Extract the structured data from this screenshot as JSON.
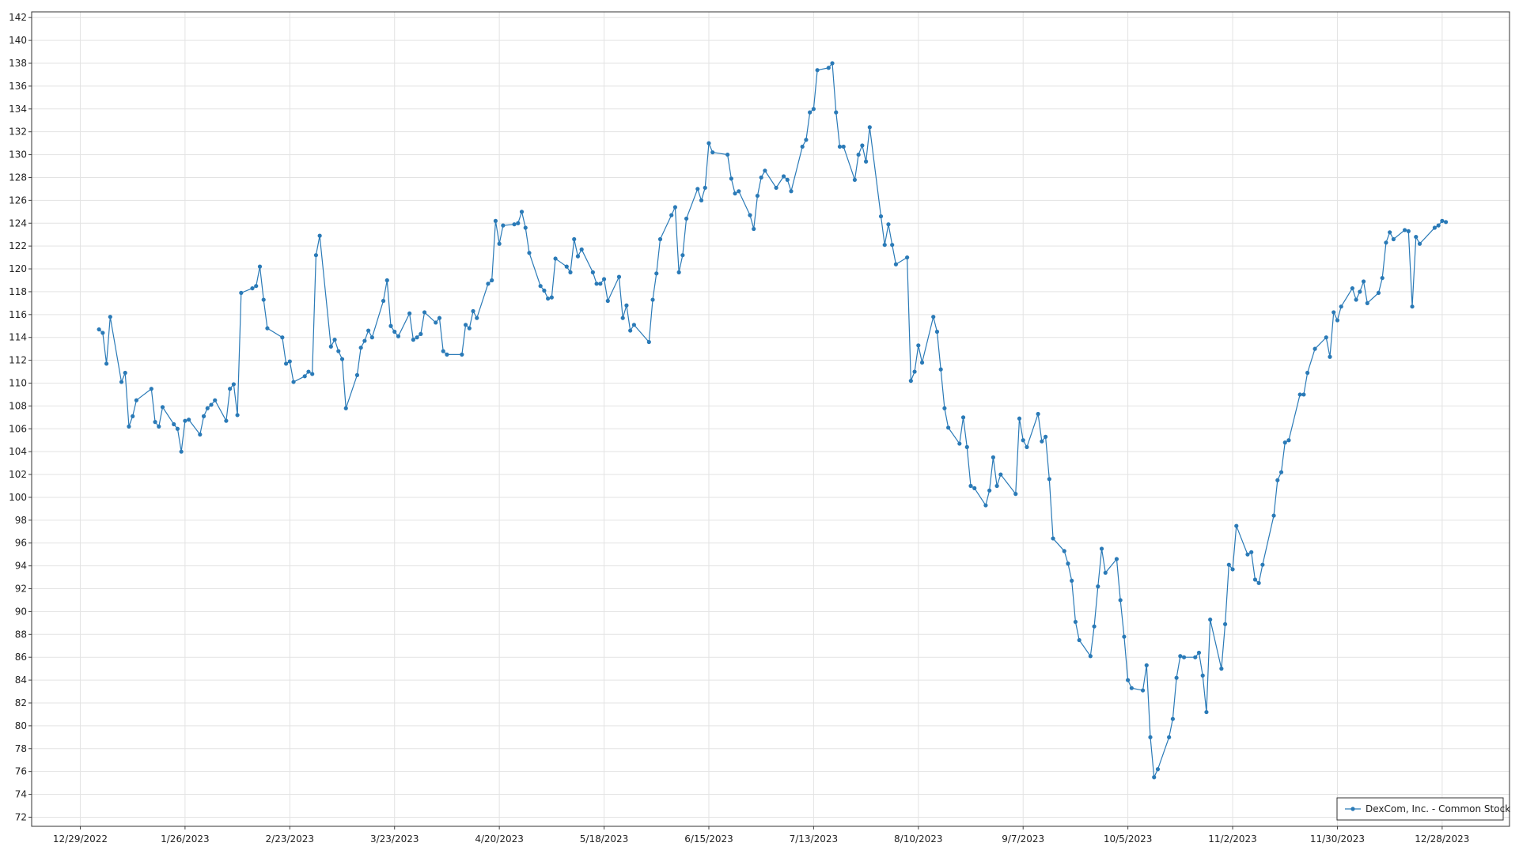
{
  "chart_data": {
    "type": "line",
    "x": [
      "1/3/2023",
      "1/4/2023",
      "1/5/2023",
      "1/6/2023",
      "1/9/2023",
      "1/10/2023",
      "1/11/2023",
      "1/12/2023",
      "1/13/2023",
      "1/17/2023",
      "1/18/2023",
      "1/19/2023",
      "1/20/2023",
      "1/23/2023",
      "1/24/2023",
      "1/25/2023",
      "1/26/2023",
      "1/27/2023",
      "1/30/2023",
      "1/31/2023",
      "2/1/2023",
      "2/2/2023",
      "2/3/2023",
      "2/6/2023",
      "2/7/2023",
      "2/8/2023",
      "2/9/2023",
      "2/10/2023",
      "2/13/2023",
      "2/14/2023",
      "2/15/2023",
      "2/16/2023",
      "2/17/2023",
      "2/21/2023",
      "2/22/2023",
      "2/23/2023",
      "2/24/2023",
      "2/27/2023",
      "2/28/2023",
      "3/1/2023",
      "3/2/2023",
      "3/3/2023",
      "3/6/2023",
      "3/7/2023",
      "3/8/2023",
      "3/9/2023",
      "3/10/2023",
      "3/13/2023",
      "3/14/2023",
      "3/15/2023",
      "3/16/2023",
      "3/17/2023",
      "3/20/2023",
      "3/21/2023",
      "3/22/2023",
      "3/23/2023",
      "3/24/2023",
      "3/27/2023",
      "3/28/2023",
      "3/29/2023",
      "3/30/2023",
      "3/31/2023",
      "4/3/2023",
      "4/4/2023",
      "4/5/2023",
      "4/6/2023",
      "4/10/2023",
      "4/11/2023",
      "4/12/2023",
      "4/13/2023",
      "4/14/2023",
      "4/17/2023",
      "4/18/2023",
      "4/19/2023",
      "4/20/2023",
      "4/21/2023",
      "4/24/2023",
      "4/25/2023",
      "4/26/2023",
      "4/27/2023",
      "4/28/2023",
      "5/1/2023",
      "5/2/2023",
      "5/3/2023",
      "5/4/2023",
      "5/5/2023",
      "5/8/2023",
      "5/9/2023",
      "5/10/2023",
      "5/11/2023",
      "5/12/2023",
      "5/15/2023",
      "5/16/2023",
      "5/17/2023",
      "5/18/2023",
      "5/19/2023",
      "5/22/2023",
      "5/23/2023",
      "5/24/2023",
      "5/25/2023",
      "5/26/2023",
      "5/30/2023",
      "5/31/2023",
      "6/1/2023",
      "6/2/2023",
      "6/5/2023",
      "6/6/2023",
      "6/7/2023",
      "6/8/2023",
      "6/9/2023",
      "6/12/2023",
      "6/13/2023",
      "6/14/2023",
      "6/15/2023",
      "6/16/2023",
      "6/20/2023",
      "6/21/2023",
      "6/22/2023",
      "6/23/2023",
      "6/26/2023",
      "6/27/2023",
      "6/28/2023",
      "6/29/2023",
      "6/30/2023",
      "7/3/2023",
      "7/5/2023",
      "7/6/2023",
      "7/7/2023",
      "7/10/2023",
      "7/11/2023",
      "7/12/2023",
      "7/13/2023",
      "7/14/2023",
      "7/17/2023",
      "7/18/2023",
      "7/19/2023",
      "7/20/2023",
      "7/21/2023",
      "7/24/2023",
      "7/25/2023",
      "7/26/2023",
      "7/27/2023",
      "7/28/2023",
      "7/31/2023",
      "8/1/2023",
      "8/2/2023",
      "8/3/2023",
      "8/4/2023",
      "8/7/2023",
      "8/8/2023",
      "8/9/2023",
      "8/10/2023",
      "8/11/2023",
      "8/14/2023",
      "8/15/2023",
      "8/16/2023",
      "8/17/2023",
      "8/18/2023",
      "8/21/2023",
      "8/22/2023",
      "8/23/2023",
      "8/24/2023",
      "8/25/2023",
      "8/28/2023",
      "8/29/2023",
      "8/30/2023",
      "8/31/2023",
      "9/1/2023",
      "9/5/2023",
      "9/6/2023",
      "9/7/2023",
      "9/8/2023",
      "9/11/2023",
      "9/12/2023",
      "9/13/2023",
      "9/14/2023",
      "9/15/2023",
      "9/18/2023",
      "9/19/2023",
      "9/20/2023",
      "9/21/2023",
      "9/22/2023",
      "9/25/2023",
      "9/26/2023",
      "9/27/2023",
      "9/28/2023",
      "9/29/2023",
      "10/2/2023",
      "10/3/2023",
      "10/4/2023",
      "10/5/2023",
      "10/6/2023",
      "10/9/2023",
      "10/10/2023",
      "10/11/2023",
      "10/12/2023",
      "10/13/2023",
      "10/16/2023",
      "10/17/2023",
      "10/18/2023",
      "10/19/2023",
      "10/20/2023",
      "10/23/2023",
      "10/24/2023",
      "10/25/2023",
      "10/26/2023",
      "10/27/2023",
      "10/30/2023",
      "10/31/2023",
      "11/1/2023",
      "11/2/2023",
      "11/3/2023",
      "11/6/2023",
      "11/7/2023",
      "11/8/2023",
      "11/9/2023",
      "11/10/2023",
      "11/13/2023",
      "11/14/2023",
      "11/15/2023",
      "11/16/2023",
      "11/17/2023",
      "11/20/2023",
      "11/21/2023",
      "11/22/2023",
      "11/24/2023",
      "11/27/2023",
      "11/28/2023",
      "11/29/2023",
      "11/30/2023",
      "12/1/2023",
      "12/4/2023",
      "12/5/2023",
      "12/6/2023",
      "12/7/2023",
      "12/8/2023",
      "12/11/2023",
      "12/12/2023",
      "12/13/2023",
      "12/14/2023",
      "12/15/2023",
      "12/18/2023",
      "12/19/2023",
      "12/20/2023",
      "12/21/2023",
      "12/22/2023",
      "12/26/2023",
      "12/27/2023",
      "12/28/2023",
      "12/29/2023"
    ],
    "series": [
      {
        "name": "DexCom, Inc. - Common Stock",
        "color": "#2a7ab7",
        "values": [
          114.7,
          114.4,
          111.7,
          115.8,
          110.1,
          110.9,
          106.2,
          107.1,
          108.5,
          109.5,
          106.6,
          106.2,
          107.9,
          106.4,
          106.0,
          104.0,
          106.7,
          106.8,
          105.5,
          107.1,
          107.8,
          108.1,
          108.5,
          106.7,
          109.5,
          109.9,
          107.2,
          117.9,
          118.3,
          118.5,
          120.2,
          117.3,
          114.8,
          114.0,
          111.7,
          111.9,
          110.1,
          110.6,
          111.0,
          110.8,
          121.2,
          122.9,
          113.2,
          113.8,
          112.8,
          112.1,
          107.8,
          110.7,
          113.1,
          113.7,
          114.6,
          114.0,
          117.2,
          119.0,
          115.0,
          114.5,
          114.1,
          116.1,
          113.8,
          114.0,
          114.3,
          116.2,
          115.3,
          115.7,
          112.8,
          112.5,
          112.5,
          115.1,
          114.8,
          116.3,
          115.7,
          118.7,
          119.0,
          124.2,
          122.2,
          123.8,
          123.9,
          124.0,
          125.0,
          123.6,
          121.4,
          118.5,
          118.1,
          117.4,
          117.5,
          120.9,
          120.2,
          119.7,
          122.6,
          121.1,
          121.7,
          119.7,
          118.7,
          118.7,
          119.1,
          117.2,
          119.3,
          115.7,
          116.8,
          114.6,
          115.1,
          113.6,
          117.3,
          119.6,
          122.6,
          124.7,
          125.4,
          119.7,
          121.2,
          124.4,
          127.0,
          126.0,
          127.1,
          131.0,
          130.2,
          130.0,
          127.9,
          126.6,
          126.8,
          124.7,
          123.5,
          126.4,
          128.0,
          128.6,
          127.1,
          128.1,
          127.8,
          126.8,
          130.7,
          131.3,
          133.7,
          134.0,
          137.4,
          137.6,
          138.0,
          133.7,
          130.7,
          130.7,
          127.8,
          130.0,
          130.8,
          129.4,
          132.4,
          124.6,
          122.1,
          123.9,
          122.1,
          120.4,
          121.0,
          110.2,
          111.0,
          113.3,
          111.8,
          115.8,
          114.5,
          111.2,
          107.8,
          106.1,
          104.7,
          107.0,
          104.4,
          101.0,
          100.8,
          99.3,
          100.6,
          103.5,
          101.0,
          102.0,
          100.3,
          106.9,
          105.0,
          104.4,
          107.3,
          104.9,
          105.3,
          101.6,
          96.4,
          95.3,
          94.2,
          92.7,
          89.1,
          87.5,
          86.1,
          88.7,
          92.2,
          95.5,
          93.4,
          94.6,
          91.0,
          87.8,
          84.0,
          83.3,
          83.1,
          85.3,
          79.0,
          75.5,
          76.2,
          79.0,
          80.6,
          84.2,
          86.1,
          86.0,
          86.0,
          86.4,
          84.4,
          81.2,
          89.3,
          85.0,
          88.9,
          94.1,
          93.7,
          97.5,
          95.0,
          95.2,
          92.8,
          92.5,
          94.1,
          98.4,
          101.5,
          102.2,
          104.8,
          105.0,
          109.0,
          109.0,
          110.9,
          113.0,
          114.0,
          112.3,
          116.2,
          115.5,
          116.7,
          118.3,
          117.3,
          118.0,
          118.9,
          117.0,
          117.9,
          119.2,
          122.3,
          123.2,
          122.6,
          123.4,
          123.3,
          116.7,
          122.8,
          122.2,
          123.6,
          123.8,
          124.2,
          124.1
        ]
      }
    ],
    "xlim": [
      "12/16/2022",
      "1/15/2024"
    ],
    "xticks": [
      "12/29/2022",
      "1/26/2023",
      "2/23/2023",
      "3/23/2023",
      "4/20/2023",
      "5/18/2023",
      "6/15/2023",
      "7/13/2023",
      "8/10/2023",
      "9/7/2023",
      "10/5/2023",
      "11/2/2023",
      "11/30/2023",
      "12/28/2023"
    ],
    "ylim": [
      71.2,
      142.5
    ],
    "yticks": [
      72,
      74,
      76,
      78,
      80,
      82,
      84,
      86,
      88,
      90,
      92,
      94,
      96,
      98,
      100,
      102,
      104,
      106,
      108,
      110,
      112,
      114,
      116,
      118,
      120,
      122,
      124,
      126,
      128,
      130,
      132,
      134,
      136,
      138,
      140,
      142
    ],
    "grid": true,
    "legend": "lower right",
    "markers": true
  }
}
